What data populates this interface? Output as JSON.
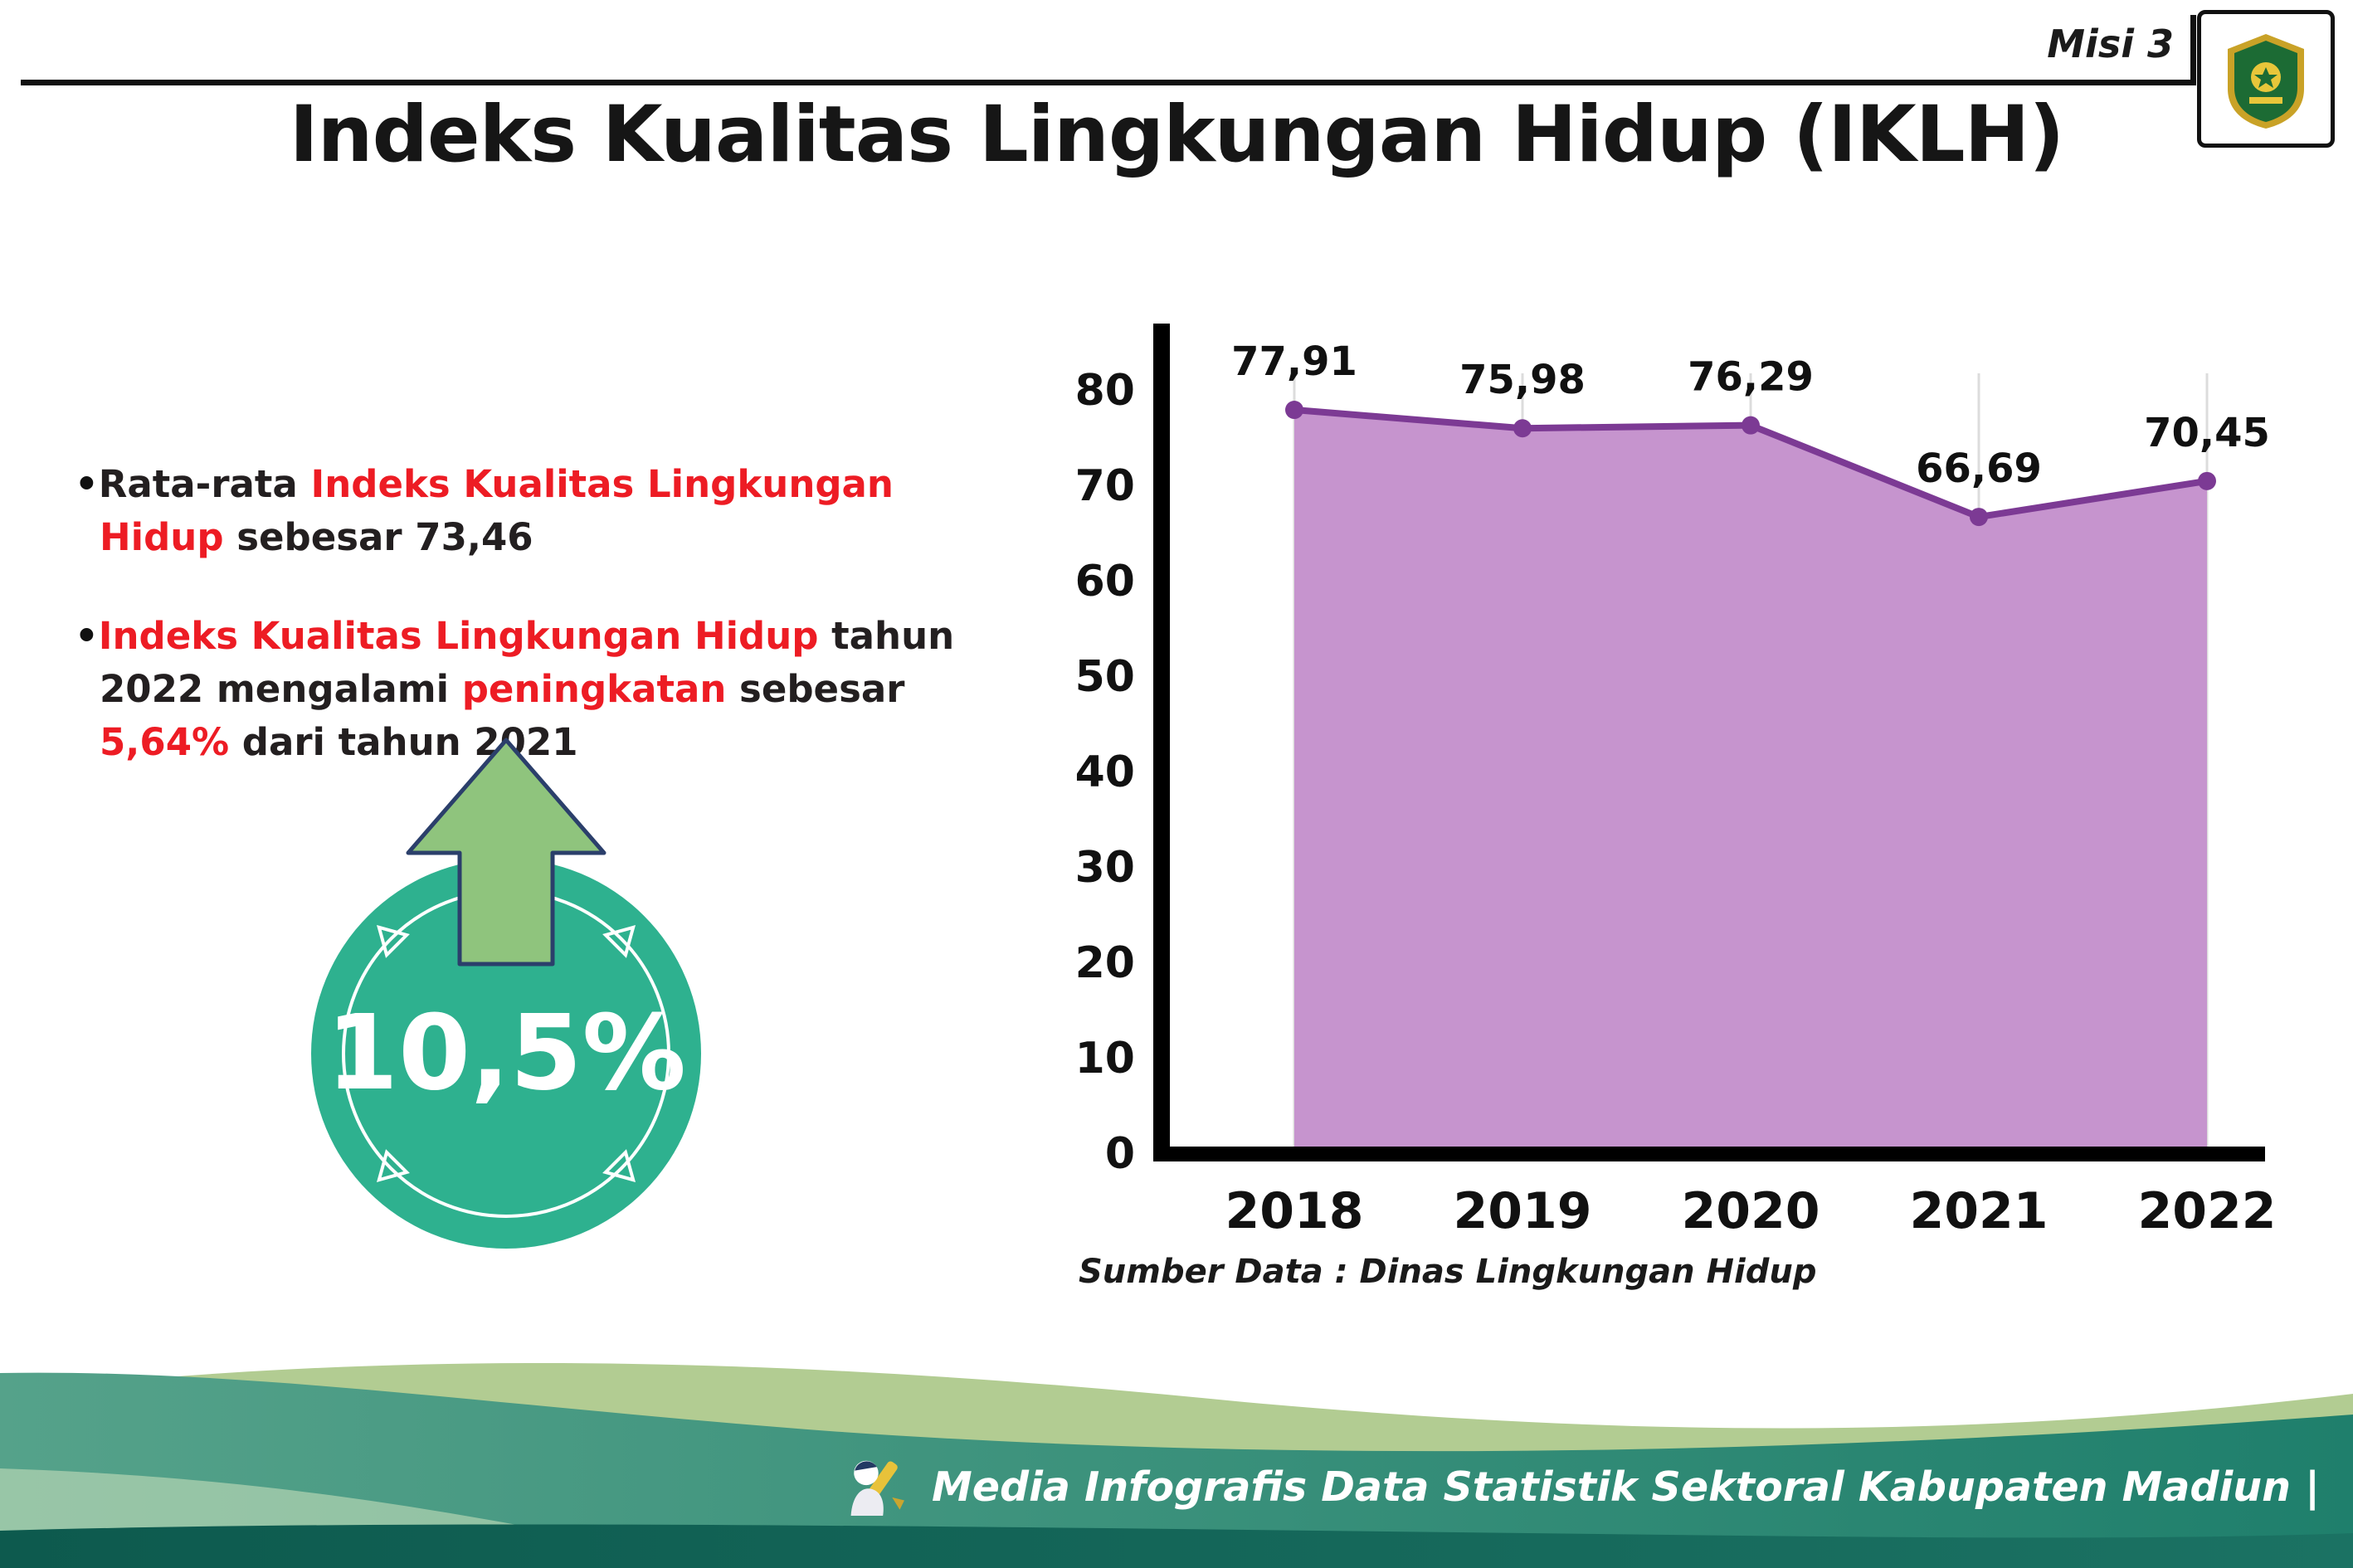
{
  "header": {
    "misi_label": "Misi 3",
    "title": "Indeks Kualitas Lingkungan Hidup (IKLH)"
  },
  "bullets": [
    {
      "segments": [
        {
          "text": "Rata-rata ",
          "color": "#231f20"
        },
        {
          "text": "Indeks Kualitas Lingkungan Hidup",
          "color": "#ed1c24"
        },
        {
          "text": " sebesar 73,46",
          "color": "#231f20"
        }
      ]
    },
    {
      "segments": [
        {
          "text": "Indeks Kualitas Lingkungan Hidup",
          "color": "#ed1c24"
        },
        {
          "text": " tahun 2022 mengalami ",
          "color": "#231f20"
        },
        {
          "text": "peningkatan",
          "color": "#ed1c24"
        },
        {
          "text": " sebesar ",
          "color": "#231f20"
        },
        {
          "text": "5,64%",
          "color": "#ed1c24"
        },
        {
          "text": " dari tahun 2021",
          "color": "#231f20"
        }
      ]
    }
  ],
  "highlight": {
    "value": "10,5%",
    "circle_color": "#2eb18f",
    "arrow_color": "#8fc47d",
    "arrow_outline_color": "#2b3f6b"
  },
  "chart_data": {
    "type": "area",
    "categories": [
      "2018",
      "2019",
      "2020",
      "2021",
      "2022"
    ],
    "values": [
      77.91,
      75.98,
      76.29,
      66.69,
      70.45
    ],
    "value_labels": [
      "77,91",
      "75,98",
      "76,29",
      "66,69",
      "70,45"
    ],
    "ylim": [
      0,
      80
    ],
    "yticks": [
      0,
      10,
      20,
      30,
      40,
      50,
      60,
      70,
      80
    ],
    "grid": "vertical-light",
    "legend": "none",
    "line_color": "#7c3a94",
    "marker_color": "#7c3a94",
    "fill_color": "#c694ce",
    "source": "Sumber Data : Dinas Lingkungan Hidup"
  },
  "footer": {
    "text": "Media Infografis Data Statistik Sektoral Kabupaten Madiun |"
  }
}
